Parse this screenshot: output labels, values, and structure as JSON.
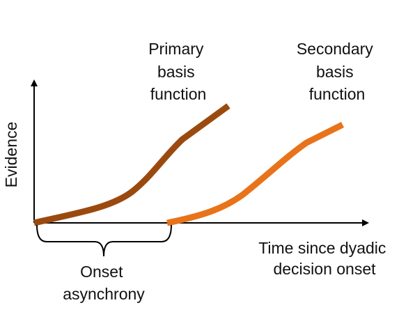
{
  "axes": {
    "ylabel": "Evidence",
    "xlabel_lines": [
      "Time since dyadic",
      "decision onset"
    ]
  },
  "curves": {
    "primary": {
      "label_lines": [
        "Primary",
        "basis",
        "function"
      ],
      "color": "#9b4a0f"
    },
    "secondary": {
      "label_lines": [
        "Secondary",
        "basis",
        "function"
      ],
      "color": "#e8731a"
    }
  },
  "brace": {
    "label_lines": [
      "Onset",
      "asynchrony"
    ]
  },
  "colors": {
    "axis": "#000000",
    "text": "#111111",
    "background": "#ffffff"
  }
}
